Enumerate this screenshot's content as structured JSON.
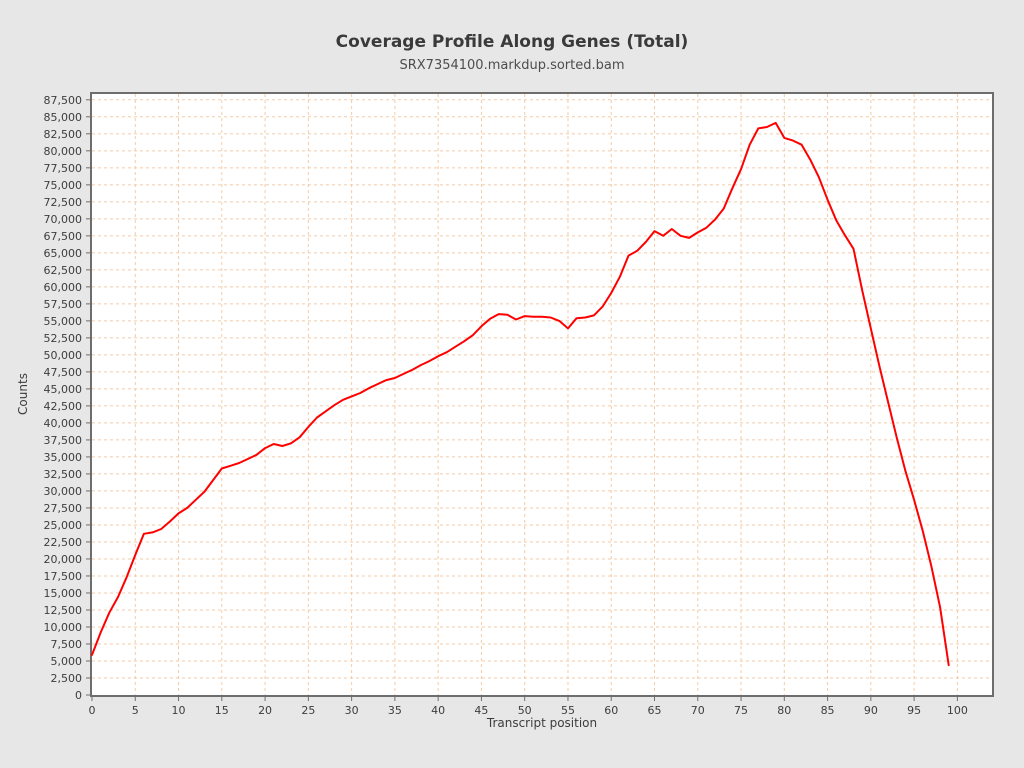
{
  "chart_data": {
    "type": "line",
    "title": "Coverage Profile Along Genes (Total)",
    "subtitle": "SRX7354100.markdup.sorted.bam",
    "xlabel": "Transcript position",
    "ylabel": "Counts",
    "x": [
      0,
      1,
      2,
      3,
      4,
      5,
      6,
      7,
      8,
      9,
      10,
      11,
      12,
      13,
      14,
      15,
      16,
      17,
      18,
      19,
      20,
      21,
      22,
      23,
      24,
      25,
      26,
      27,
      28,
      29,
      30,
      31,
      32,
      33,
      34,
      35,
      36,
      37,
      38,
      39,
      40,
      41,
      42,
      43,
      44,
      45,
      46,
      47,
      48,
      49,
      50,
      51,
      52,
      53,
      54,
      55,
      56,
      57,
      58,
      59,
      60,
      61,
      62,
      63,
      64,
      65,
      66,
      67,
      68,
      69,
      70,
      71,
      72,
      73,
      74,
      75,
      76,
      77,
      78,
      79,
      80,
      81,
      82,
      83,
      84,
      85,
      86,
      87,
      88,
      89,
      90,
      91,
      92,
      93,
      94,
      95,
      96,
      97,
      98,
      99
    ],
    "values": [
      5900,
      9200,
      12100,
      14400,
      17300,
      20600,
      23700,
      23900,
      24400,
      25500,
      26700,
      27500,
      28700,
      29900,
      31600,
      33300,
      33700,
      34100,
      34700,
      35300,
      36300,
      36900,
      36600,
      37000,
      37900,
      39400,
      40800,
      41700,
      42600,
      43400,
      43900,
      44400,
      45100,
      45700,
      46300,
      46600,
      47200,
      47800,
      48500,
      49100,
      49800,
      50400,
      51200,
      52000,
      52900,
      54200,
      55300,
      56000,
      55900,
      55200,
      55700,
      55600,
      55600,
      55500,
      55000,
      53900,
      55400,
      55500,
      55800,
      57100,
      59100,
      61500,
      64600,
      65300,
      66600,
      68200,
      67500,
      68500,
      67500,
      67200,
      68000,
      68700,
      69900,
      71500,
      74500,
      77300,
      80900,
      83300,
      83500,
      84100,
      81900,
      81500,
      80900,
      78700,
      76100,
      72800,
      69800,
      67600,
      65600,
      59500,
      53900,
      48300,
      43000,
      37800,
      32900,
      28700,
      24100,
      18900,
      12900,
      4400
    ],
    "xlim": [
      0,
      104
    ],
    "ylim": [
      0,
      88500
    ],
    "x_tick_step": 5,
    "x_tick_max": 100,
    "y_tick_step": 2500,
    "y_tick_max": 87500,
    "grid": "dashed",
    "legend": "none",
    "line_color": "#ff0000",
    "grid_color": "#f4cba6",
    "plot_bg": "#ffffff",
    "page_bg": "#e7e7e7",
    "axis_color": "#6d6d6d",
    "text_color": "#3d3d3d"
  }
}
